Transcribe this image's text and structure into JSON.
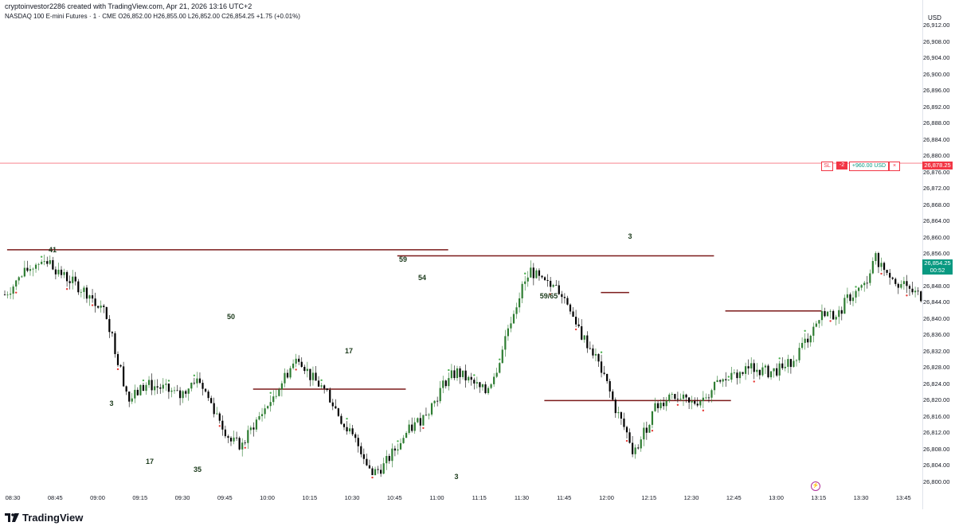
{
  "header": {
    "author_line": "cryptoinvestor2286 created with TradingView.com, Apr 21, 2026 13:16 UTC+2",
    "symbol_line": "NASDAQ 100 E-mini Futures · 1 · CME  O26,852.00  H26,855.00  L26,852.00  C26,854.25  +1.75 (+0.01%)"
  },
  "price_axis": {
    "currency": "USD",
    "ticks": [
      "26,912.00",
      "26,908.00",
      "26,904.00",
      "26,900.00",
      "26,896.00",
      "26,892.00",
      "26,888.00",
      "26,884.00",
      "26,880.00",
      "26,876.00",
      "26,872.00",
      "26,868.00",
      "26,864.00",
      "26,860.00",
      "26,856.00",
      "26,852.00",
      "26,848.00",
      "26,844.00",
      "26,840.00",
      "26,836.00",
      "26,832.00",
      "26,828.00",
      "26,824.00",
      "26,820.00",
      "26,816.00",
      "26,812.00",
      "26,808.00",
      "26,804.00",
      "26,800.00"
    ],
    "range": [
      26798,
      26914
    ],
    "last_price": "26,854.25",
    "last_countdown": "00:52",
    "stop_price": "26,878.25"
  },
  "time_axis": {
    "ticks": [
      "08:30",
      "08:45",
      "09:00",
      "09:15",
      "09:30",
      "09:45",
      "10:00",
      "10:15",
      "10:30",
      "10:45",
      "11:00",
      "11:15",
      "11:30",
      "11:45",
      "12:00",
      "12:15",
      "12:30",
      "12:45",
      "13:00",
      "13:15",
      "13:30",
      "13:45"
    ]
  },
  "position": {
    "sl_label": "SL",
    "qty": "-2",
    "pnl": "+960.00 USD",
    "close": "×"
  },
  "annotations": [
    {
      "text": "41"
    },
    {
      "text": "3"
    },
    {
      "text": "17"
    },
    {
      "text": "35"
    },
    {
      "text": "50"
    },
    {
      "text": "17"
    },
    {
      "text": "59"
    },
    {
      "text": "54"
    },
    {
      "text": "3"
    },
    {
      "text": "59/65"
    },
    {
      "text": "3"
    }
  ],
  "levels": [
    {
      "from": "08:28",
      "to": "11:04",
      "price": 26857.0
    },
    {
      "from": "10:46",
      "to": "12:38",
      "price": 26855.5
    },
    {
      "from": "09:55",
      "to": "10:49",
      "price": 26822.8
    },
    {
      "from": "11:38",
      "to": "12:44",
      "price": 26820.0
    },
    {
      "from": "12:42",
      "to": "13:16",
      "price": 26842.0
    },
    {
      "from": "11:58",
      "to": "12:08",
      "price": 26846.5
    }
  ],
  "colors": {
    "bull": "#2e7d32",
    "bear": "#000000",
    "level": "#7b1a1a",
    "stop": "#f23645",
    "last": "#089981"
  },
  "brand": "TradingView"
}
